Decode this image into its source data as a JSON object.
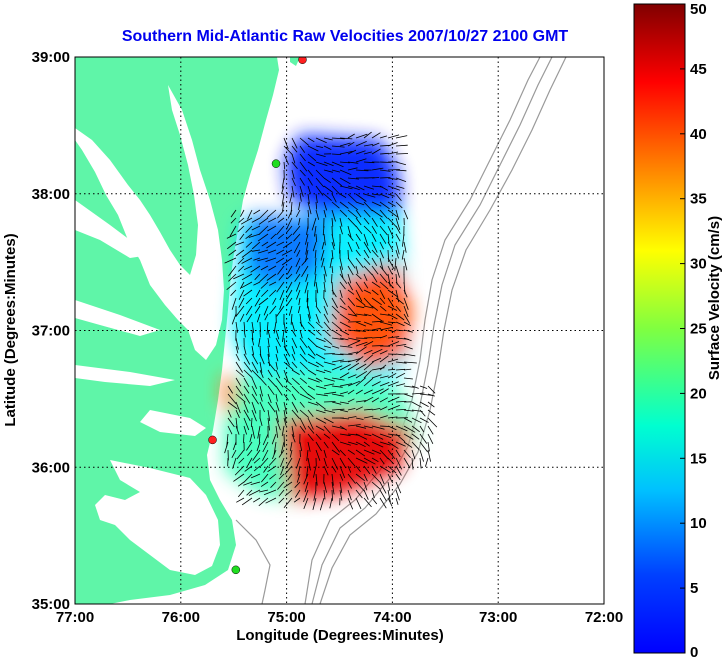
{
  "chart_data": {
    "type": "vector-field map",
    "title": "Southern Mid-Atlantic Raw Velocities 2007/10/27 2100 GMT",
    "xlabel": "Longitude (Degrees:Minutes)",
    "ylabel": "Latitude (Degrees:Minutes)",
    "xlim": [
      -77,
      -72
    ],
    "ylim": [
      35,
      39
    ],
    "x_ticks": [
      {
        "value": -77,
        "label": "77:00"
      },
      {
        "value": -76,
        "label": "76:00"
      },
      {
        "value": -75,
        "label": "75:00"
      },
      {
        "value": -74,
        "label": "74:00"
      },
      {
        "value": -73,
        "label": "73:00"
      },
      {
        "value": -72,
        "label": "72:00"
      }
    ],
    "y_ticks": [
      {
        "value": 35,
        "label": "35:00"
      },
      {
        "value": 36,
        "label": "36:00"
      },
      {
        "value": 37,
        "label": "37:00"
      },
      {
        "value": 38,
        "label": "38:00"
      },
      {
        "value": 39,
        "label": "39:00"
      }
    ],
    "grid": true,
    "colorbar": {
      "label": "Surface Velocity (cm/s)",
      "range": [
        0,
        50
      ],
      "ticks": [
        0,
        5,
        10,
        15,
        20,
        25,
        30,
        35,
        40,
        45,
        50
      ],
      "colormap": "jet"
    },
    "land_color": "#5ff5a8",
    "stations": [
      {
        "lon": -74.85,
        "lat": 38.98,
        "color": "#ff2020"
      },
      {
        "lon": -75.1,
        "lat": 38.22,
        "color": "#20dd20"
      },
      {
        "lon": -75.7,
        "lat": 36.2,
        "color": "#ff2020"
      },
      {
        "lon": -75.48,
        "lat": 35.25,
        "color": "#20dd20"
      }
    ],
    "speed_regions": [
      {
        "name": "nearshore band",
        "speed_cm_s": 12
      },
      {
        "name": "northeast box",
        "speed_cm_s": 8
      },
      {
        "name": "mid-shelf",
        "speed_cm_s": 18
      },
      {
        "name": "east-central high",
        "speed_cm_s": 40
      },
      {
        "name": "southern jet",
        "speed_cm_s": 45
      }
    ]
  }
}
